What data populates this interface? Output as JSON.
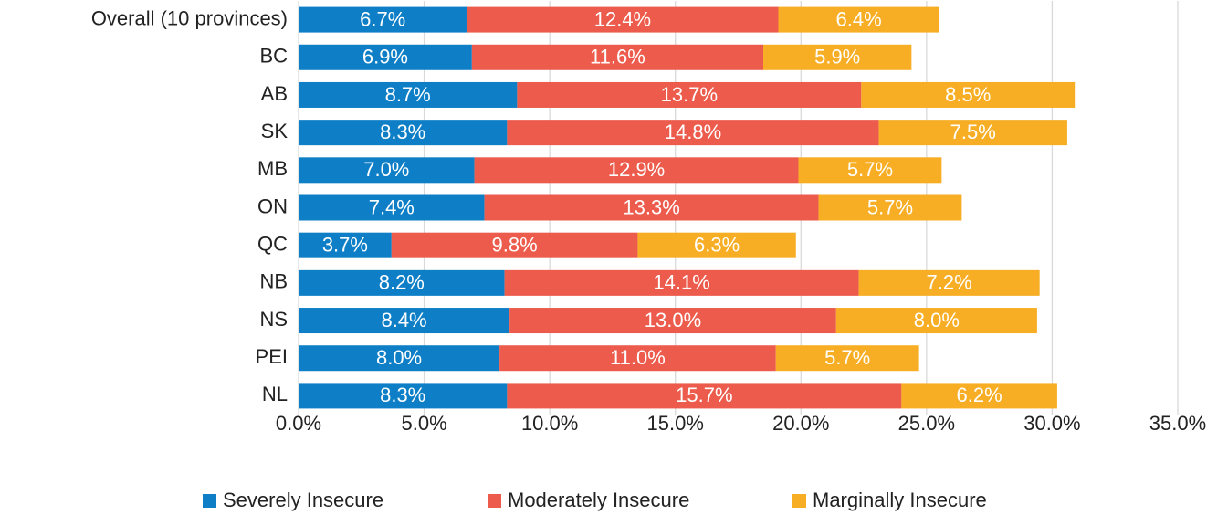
{
  "chart_data": {
    "type": "stacked-barh",
    "categories": [
      "Overall (10 provinces)",
      "BC",
      "AB",
      "SK",
      "MB",
      "ON",
      "QC",
      "NB",
      "NS",
      "PEI",
      "NL"
    ],
    "series": [
      {
        "name": "Severely Insecure",
        "color": "#0e7fc6",
        "values": [
          6.7,
          6.9,
          8.7,
          8.3,
          7.0,
          7.4,
          3.7,
          8.2,
          8.4,
          8.0,
          8.3
        ],
        "value_labels": [
          "6.7%",
          "6.9%",
          "8.7%",
          "8.3%",
          "7.0%",
          "7.4%",
          "3.7%",
          "8.2%",
          "8.4%",
          "8.0%",
          "8.3%"
        ]
      },
      {
        "name": "Moderately Insecure",
        "color": "#ec5b4b",
        "values": [
          12.4,
          11.6,
          13.7,
          14.8,
          12.9,
          13.3,
          9.8,
          14.1,
          13.0,
          11.0,
          15.7
        ],
        "value_labels": [
          "12.4%",
          "11.6%",
          "13.7%",
          "14.8%",
          "12.9%",
          "13.3%",
          "9.8%",
          "14.1%",
          "13.0%",
          "11.0%",
          "15.7%"
        ]
      },
      {
        "name": "Marginally Insecure",
        "color": "#f7ae24",
        "values": [
          6.4,
          5.9,
          8.5,
          7.5,
          5.7,
          5.7,
          6.3,
          7.2,
          8.0,
          5.7,
          6.2
        ],
        "value_labels": [
          "6.4%",
          "5.9%",
          "8.5%",
          "7.5%",
          "5.7%",
          "5.7%",
          "6.3%",
          "7.2%",
          "8.0%",
          "5.7%",
          "6.2%"
        ]
      }
    ],
    "xlim": [
      0,
      35
    ],
    "xticks": [
      {
        "value": 0,
        "label": "0.0%"
      },
      {
        "value": 5,
        "label": "5.0%"
      },
      {
        "value": 10,
        "label": "10.0%"
      },
      {
        "value": 15,
        "label": "15.0%"
      },
      {
        "value": 20,
        "label": "20.0%"
      },
      {
        "value": 25,
        "label": "25.0%"
      },
      {
        "value": 30,
        "label": "30.0%"
      },
      {
        "value": 35,
        "label": "35.0%"
      }
    ],
    "grid": true,
    "legend": "bottom"
  }
}
